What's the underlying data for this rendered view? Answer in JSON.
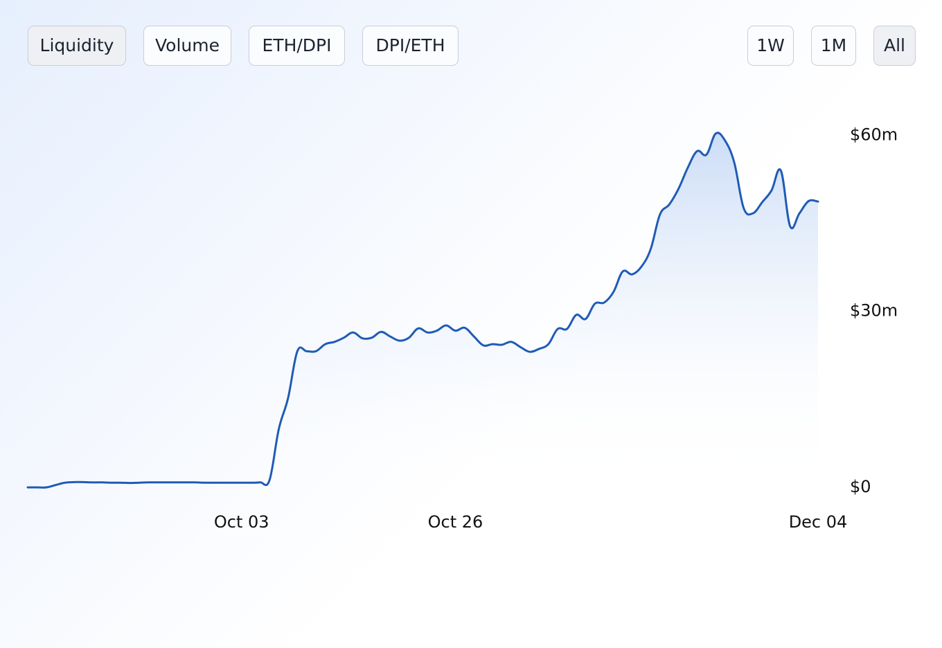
{
  "buttons": {
    "metrics": [
      {
        "label": "Liquidity",
        "active": true
      },
      {
        "label": "Volume",
        "active": false
      },
      {
        "label": "ETH/DPI",
        "active": false
      },
      {
        "label": "DPI/ETH",
        "active": false
      }
    ],
    "ranges": [
      {
        "label": "1W",
        "active": false
      },
      {
        "label": "1M",
        "active": false
      },
      {
        "label": "All",
        "active": true
      }
    ]
  },
  "chart_data": {
    "type": "area",
    "color": "#1f5bb5",
    "categories": [
      null,
      null,
      null,
      null,
      null,
      null,
      null,
      null,
      null,
      null,
      null,
      null,
      null,
      null,
      null,
      null,
      null,
      null,
      null,
      null,
      null,
      null,
      null,
      "Oct 03",
      null,
      null,
      null,
      null,
      null,
      null,
      null,
      null,
      null,
      null,
      null,
      null,
      null,
      null,
      null,
      null,
      null,
      null,
      null,
      null,
      null,
      null,
      "Oct 26",
      null,
      null,
      null,
      null,
      null,
      null,
      null,
      null,
      null,
      null,
      null,
      null,
      null,
      null,
      null,
      null,
      null,
      null,
      null,
      null,
      null,
      null,
      null,
      null,
      null,
      null,
      null,
      null,
      null,
      null,
      null,
      null,
      null,
      null,
      null,
      null,
      null,
      null,
      "Dec 04"
    ],
    "values": [
      0,
      0,
      0,
      0.4,
      0.8,
      0.9,
      0.9,
      0.85,
      0.85,
      0.8,
      0.8,
      0.75,
      0.8,
      0.85,
      0.85,
      0.85,
      0.85,
      0.85,
      0.85,
      0.8,
      0.8,
      0.8,
      0.8,
      0.8,
      0.8,
      0.85,
      1.2,
      9.9,
      15.2,
      23.2,
      23.2,
      23.2,
      24.4,
      24.8,
      25.5,
      26.4,
      25.4,
      25.5,
      26.5,
      25.7,
      25.0,
      25.5,
      27.1,
      26.4,
      26.7,
      27.6,
      26.7,
      27.2,
      25.7,
      24.2,
      24.4,
      24.3,
      24.8,
      23.9,
      23.1,
      23.6,
      24.4,
      27.0,
      27.0,
      29.4,
      28.7,
      31.3,
      31.5,
      33.3,
      36.8,
      36.3,
      37.6,
      40.6,
      46.5,
      48.2,
      50.9,
      54.5,
      57.3,
      56.7,
      60.3,
      59.1,
      55.3,
      47.6,
      46.7,
      48.6,
      50.6,
      54.0,
      44.5,
      46.7,
      48.8,
      48.7
    ],
    "ylim": [
      0,
      65
    ],
    "yticks": [
      {
        "value": 0,
        "label": "$0"
      },
      {
        "value": 30,
        "label": "$30m"
      },
      {
        "value": 60,
        "label": "$60m"
      }
    ],
    "grid": false
  }
}
